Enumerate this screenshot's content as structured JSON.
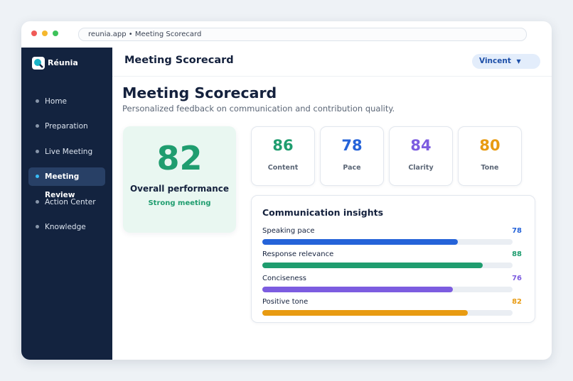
{
  "browser": {
    "address": "reunia.app  •  Meeting Scorecard"
  },
  "sidebar": {
    "brand": "Réunia",
    "active_nav": 3,
    "nav": [
      "Home",
      "Preparation",
      "Live Meeting",
      "Meeting Review",
      "Action Center",
      "Knowledge"
    ]
  },
  "header": {
    "title": "Meeting Scorecard",
    "user": "Vincent"
  },
  "page": {
    "title": "Meeting Scorecard",
    "subtitle": "Personalized feedback on communication and contribution quality."
  },
  "overall": {
    "score": 82,
    "label": "Overall performance",
    "verdict": "Strong meeting",
    "color": "#1f9d6f"
  },
  "metrics": [
    {
      "value": 86,
      "label": "Content",
      "color": "#1f9d6f"
    },
    {
      "value": 78,
      "label": "Pace",
      "color": "#2563d9"
    },
    {
      "value": 84,
      "label": "Clarity",
      "color": "#7c5ce0"
    },
    {
      "value": 80,
      "label": "Tone",
      "color": "#e89b12"
    }
  ],
  "insights": {
    "title": "Communication insights",
    "items": [
      {
        "label": "Speaking pace",
        "value": 78,
        "color": "#2563d9"
      },
      {
        "label": "Response relevance",
        "value": 88,
        "color": "#1f9d6f"
      },
      {
        "label": "Conciseness",
        "value": 76,
        "color": "#7c5ce0"
      },
      {
        "label": "Positive tone",
        "value": 82,
        "color": "#e89b12"
      }
    ]
  }
}
